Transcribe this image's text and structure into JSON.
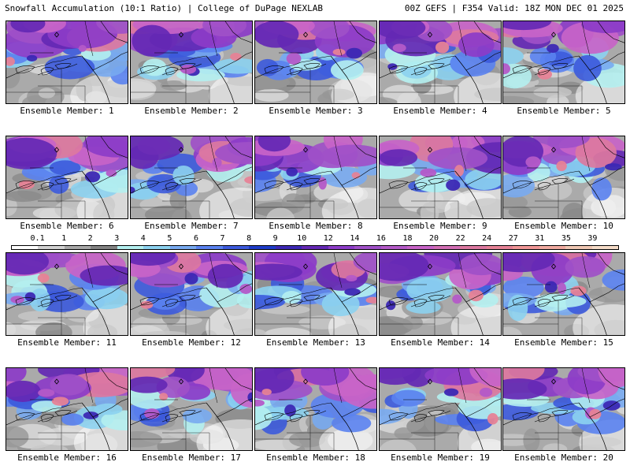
{
  "header": {
    "title": "Snowfall Accumulation (10:1 Ratio) | College of DuPage NEXLAB",
    "run_info": "00Z GEFS | F354 Valid: 18Z MON DEC 01 2025"
  },
  "legend": {
    "ticks": [
      "0.1",
      "1",
      "2",
      "3",
      "4",
      "5",
      "6",
      "7",
      "8",
      "9",
      "10",
      "12",
      "14",
      "16",
      "18",
      "20",
      "22",
      "24",
      "27",
      "31",
      "35",
      "39"
    ],
    "colors": [
      "#ffffff",
      "#d2d2d2",
      "#a8a8a8",
      "#828282",
      "#b4f0f0",
      "#8cd2f0",
      "#78aaf0",
      "#5a82f0",
      "#3c5adc",
      "#1e3cc8",
      "#3c28b4",
      "#6428b4",
      "#8c3cc8",
      "#a050c8",
      "#b45ac8",
      "#c864c8",
      "#d26eb4",
      "#dc78a0",
      "#e68296",
      "#f09696",
      "#f0aaa0",
      "#f0c8b4",
      "#f5dcc8"
    ]
  },
  "panels": [
    {
      "label": "Ensemble Member: 1"
    },
    {
      "label": "Ensemble Member: 2"
    },
    {
      "label": "Ensemble Member: 3"
    },
    {
      "label": "Ensemble Member: 4"
    },
    {
      "label": "Ensemble Member: 5"
    },
    {
      "label": "Ensemble Member: 6"
    },
    {
      "label": "Ensemble Member: 7"
    },
    {
      "label": "Ensemble Member: 8"
    },
    {
      "label": "Ensemble Member: 9"
    },
    {
      "label": "Ensemble Member: 10"
    },
    {
      "label": "Ensemble Member: 11"
    },
    {
      "label": "Ensemble Member: 12"
    },
    {
      "label": "Ensemble Member: 13"
    },
    {
      "label": "Ensemble Member: 14"
    },
    {
      "label": "Ensemble Member: 15"
    },
    {
      "label": "Ensemble Member: 16"
    },
    {
      "label": "Ensemble Member: 17"
    },
    {
      "label": "Ensemble Member: 18"
    },
    {
      "label": "Ensemble Member: 19"
    },
    {
      "label": "Ensemble Member: 20"
    }
  ]
}
